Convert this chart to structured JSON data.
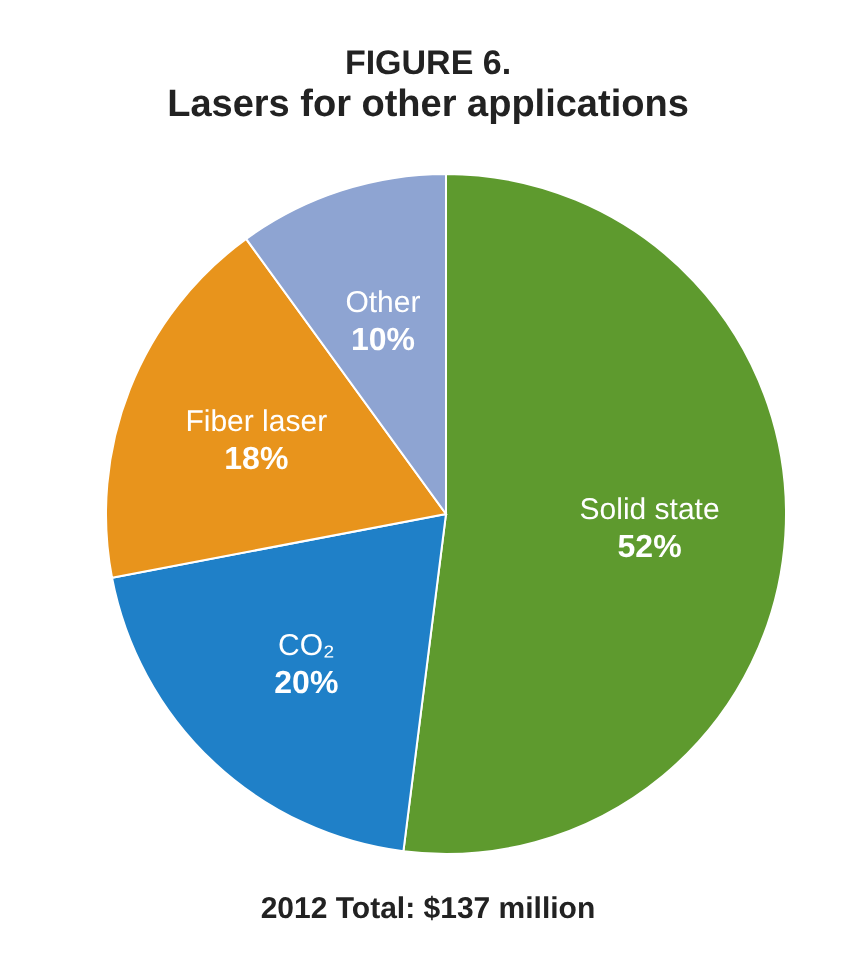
{
  "chart_data": {
    "type": "pie",
    "title": "FIGURE 6.",
    "subtitle": "Lasers for other applications",
    "categories": [
      "Solid state",
      "CO₂",
      "Fiber laser",
      "Other"
    ],
    "values": [
      52,
      20,
      18,
      10
    ],
    "colors": [
      "#5e9a2e",
      "#1f80c8",
      "#e8941c",
      "#8ea4d2"
    ],
    "value_labels": [
      "52%",
      "20%",
      "18%",
      "10%"
    ],
    "annotations": [
      "2012 Total: $137 million"
    ]
  }
}
